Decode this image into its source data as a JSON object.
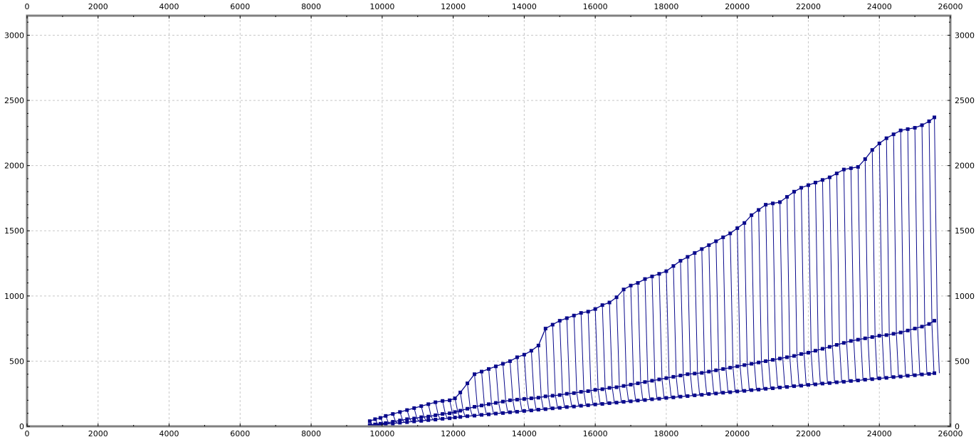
{
  "chart_data": {
    "type": "line",
    "title": "",
    "xlabel": "",
    "ylabel": "",
    "xlim": [
      0,
      26000
    ],
    "ylim": [
      0,
      3150
    ],
    "x_ticks": [
      0,
      2000,
      4000,
      6000,
      8000,
      10000,
      12000,
      14000,
      16000,
      18000,
      20000,
      22000,
      24000,
      26000
    ],
    "y_ticks": [
      0,
      500,
      1000,
      1500,
      2000,
      2500,
      3000
    ],
    "x_tick_labels": [
      "0",
      "2000",
      "4000",
      "6000",
      "8000",
      "10000",
      "12000",
      "14000",
      "16000",
      "18000",
      "20000",
      "22000",
      "24000",
      "26000"
    ],
    "y_tick_labels": [
      "0",
      "500",
      "1000",
      "1500",
      "2000",
      "2500",
      "3000"
    ],
    "grid": true,
    "legend": "none",
    "series_color": "#0a0a8c",
    "marker": "square",
    "series": [
      {
        "x": [
          9650,
          9800,
          9950,
          10100,
          10300,
          10500,
          10700,
          10900,
          11100,
          11300,
          11500,
          11700,
          11900,
          12050,
          12200,
          12400,
          12600,
          12800,
          13000,
          13200,
          13400,
          13600,
          13800,
          14000,
          14200,
          14400,
          14600,
          14800,
          15000,
          15200,
          15400,
          15600,
          15800,
          16000,
          16200,
          16400,
          16600,
          16800,
          17000,
          17200,
          17400,
          17600,
          17800,
          18000,
          18200,
          18400,
          18600,
          18800,
          19000,
          19200,
          19400,
          19600,
          19800,
          20000,
          20200,
          20400,
          20600,
          20800,
          21000,
          21200,
          21400,
          21600,
          21800,
          22000,
          22200,
          22400,
          22600,
          22800,
          23000,
          23200,
          23400,
          23600,
          23800,
          24000,
          24200,
          24400,
          24600,
          24800,
          25000,
          25200,
          25400,
          25550
        ],
        "y": [
          40,
          55,
          65,
          80,
          95,
          110,
          125,
          140,
          155,
          170,
          185,
          195,
          200,
          215,
          260,
          330,
          400,
          420,
          440,
          460,
          480,
          500,
          530,
          550,
          580,
          620,
          750,
          780,
          810,
          830,
          850,
          870,
          880,
          900,
          930,
          950,
          990,
          1050,
          1080,
          1100,
          1130,
          1150,
          1170,
          1190,
          1230,
          1270,
          1300,
          1330,
          1360,
          1390,
          1420,
          1450,
          1480,
          1520,
          1560,
          1620,
          1660,
          1700,
          1710,
          1720,
          1760,
          1800,
          1830,
          1850,
          1870,
          1890,
          1910,
          1940,
          1970,
          1980,
          1990,
          2050,
          2120,
          2170,
          2210,
          2240,
          2270,
          2280,
          2290,
          2310,
          2340,
          2370
        ]
      },
      {
        "x": [
          9650,
          9800,
          9950,
          10100,
          10300,
          10500,
          10700,
          10900,
          11100,
          11300,
          11500,
          11700,
          11900,
          12050,
          12200,
          12400,
          12600,
          12800,
          13000,
          13200,
          13400,
          13600,
          13800,
          14000,
          14200,
          14400,
          14600,
          14800,
          15000,
          15200,
          15400,
          15600,
          15800,
          16000,
          16200,
          16400,
          16600,
          16800,
          17000,
          17200,
          17400,
          17600,
          17800,
          18000,
          18200,
          18400,
          18600,
          18800,
          19000,
          19200,
          19400,
          19600,
          19800,
          20000,
          20200,
          20400,
          20600,
          20800,
          21000,
          21200,
          21400,
          21600,
          21800,
          22000,
          22200,
          22400,
          22600,
          22800,
          23000,
          23200,
          23400,
          23600,
          23800,
          24000,
          24200,
          24400,
          24600,
          24800,
          25000,
          25200,
          25400,
          25550
        ],
        "y": [
          10,
          15,
          20,
          25,
          35,
          45,
          55,
          60,
          70,
          75,
          85,
          95,
          100,
          110,
          120,
          135,
          150,
          160,
          170,
          180,
          190,
          200,
          205,
          210,
          215,
          220,
          230,
          235,
          240,
          250,
          255,
          265,
          270,
          280,
          285,
          295,
          300,
          310,
          320,
          330,
          340,
          350,
          360,
          370,
          380,
          390,
          400,
          405,
          410,
          420,
          430,
          440,
          450,
          460,
          470,
          480,
          490,
          500,
          510,
          520,
          530,
          540,
          555,
          565,
          580,
          595,
          610,
          625,
          640,
          655,
          665,
          675,
          685,
          695,
          700,
          710,
          720,
          735,
          750,
          765,
          785,
          810
        ]
      },
      {
        "x": [
          9650,
          9800,
          9950,
          10100,
          10300,
          10500,
          10700,
          10900,
          11100,
          11300,
          11500,
          11700,
          11900,
          12050,
          12200,
          12400,
          12600,
          12800,
          13000,
          13200,
          13400,
          13600,
          13800,
          14000,
          14200,
          14400,
          14600,
          14800,
          15000,
          15200,
          15400,
          15600,
          15800,
          16000,
          16200,
          16400,
          16600,
          16800,
          17000,
          17200,
          17400,
          17600,
          17800,
          18000,
          18200,
          18400,
          18600,
          18800,
          19000,
          19200,
          19400,
          19600,
          19800,
          20000,
          20200,
          20400,
          20600,
          20800,
          21000,
          21200,
          21400,
          21600,
          21800,
          22000,
          22200,
          22400,
          22600,
          22800,
          23000,
          23200,
          23400,
          23600,
          23800,
          24000,
          24200,
          24400,
          24600,
          24800,
          25000,
          25200,
          25400,
          25550
        ],
        "y": [
          5,
          10,
          12,
          18,
          22,
          28,
          32,
          38,
          42,
          48,
          52,
          58,
          62,
          68,
          72,
          78,
          82,
          88,
          92,
          98,
          102,
          108,
          112,
          118,
          122,
          128,
          132,
          138,
          142,
          148,
          152,
          158,
          162,
          168,
          172,
          178,
          182,
          188,
          192,
          198,
          202,
          208,
          212,
          218,
          222,
          228,
          232,
          238,
          242,
          248,
          252,
          258,
          262,
          268,
          272,
          278,
          282,
          288,
          292,
          298,
          302,
          308,
          312,
          318,
          322,
          328,
          332,
          338,
          342,
          348,
          352,
          358,
          362,
          368,
          372,
          378,
          382,
          388,
          392,
          398,
          402,
          408
        ]
      }
    ]
  }
}
